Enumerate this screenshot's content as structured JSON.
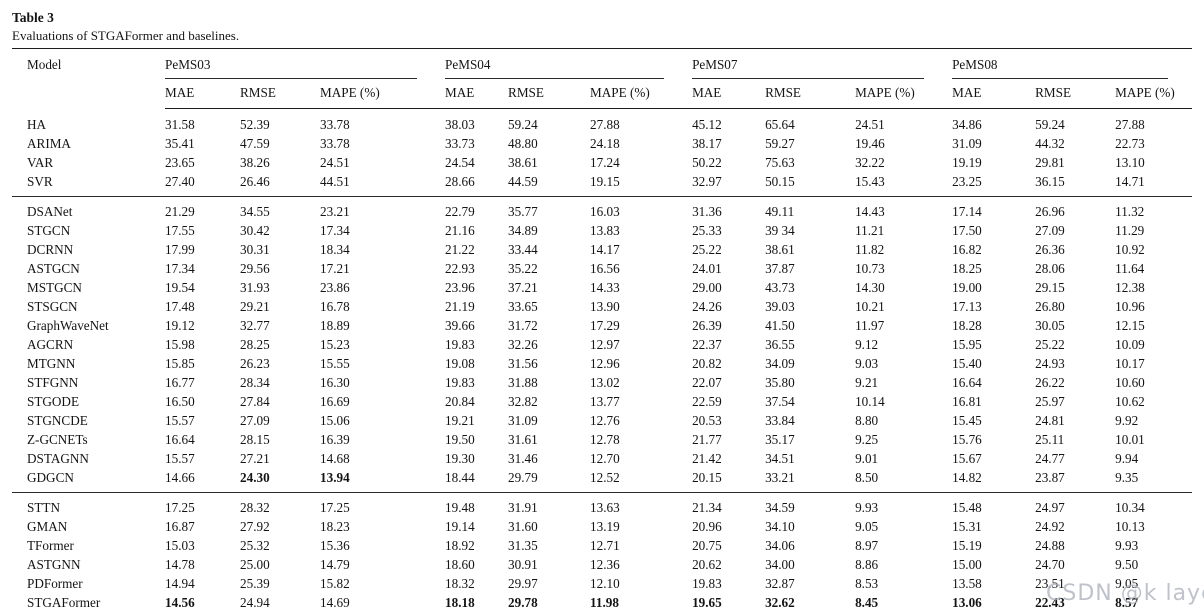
{
  "table": {
    "label": "Table 3",
    "caption": "Evaluations of STGAFormer and baselines.",
    "model_header": "Model",
    "groups": [
      "PeMS03",
      "PeMS04",
      "PeMS07",
      "PeMS08"
    ],
    "metrics": [
      "MAE",
      "RMSE",
      "MAPE (%)"
    ],
    "sections": [
      {
        "name": "classical-baselines",
        "rows": [
          {
            "model": "HA",
            "values": [
              "31.58",
              "52.39",
              "33.78",
              "38.03",
              "59.24",
              "27.88",
              "45.12",
              "65.64",
              "24.51",
              "34.86",
              "59.24",
              "27.88"
            ],
            "bold": []
          },
          {
            "model": "ARIMA",
            "values": [
              "35.41",
              "47.59",
              "33.78",
              "33.73",
              "48.80",
              "24.18",
              "38.17",
              "59.27",
              "19.46",
              "31.09",
              "44.32",
              "22.73"
            ],
            "bold": []
          },
          {
            "model": "VAR",
            "values": [
              "23.65",
              "38.26",
              "24.51",
              "24.54",
              "38.61",
              "17.24",
              "50.22",
              "75.63",
              "32.22",
              "19.19",
              "29.81",
              "13.10"
            ],
            "bold": []
          },
          {
            "model": "SVR",
            "values": [
              "27.40",
              "26.46",
              "44.51",
              "28.66",
              "44.59",
              "19.15",
              "32.97",
              "50.15",
              "15.43",
              "23.25",
              "36.15",
              "14.71"
            ],
            "bold": []
          }
        ]
      },
      {
        "name": "gnn-baselines",
        "rows": [
          {
            "model": "DSANet",
            "values": [
              "21.29",
              "34.55",
              "23.21",
              "22.79",
              "35.77",
              "16.03",
              "31.36",
              "49.11",
              "14.43",
              "17.14",
              "26.96",
              "11.32"
            ],
            "bold": []
          },
          {
            "model": "STGCN",
            "values": [
              "17.55",
              "30.42",
              "17.34",
              "21.16",
              "34.89",
              "13.83",
              "25.33",
              "39 34",
              "11.21",
              "17.50",
              "27.09",
              "11.29"
            ],
            "bold": []
          },
          {
            "model": "DCRNN",
            "values": [
              "17.99",
              "30.31",
              "18.34",
              "21.22",
              "33.44",
              "14.17",
              "25.22",
              "38.61",
              "11.82",
              "16.82",
              "26.36",
              "10.92"
            ],
            "bold": []
          },
          {
            "model": "ASTGCN",
            "values": [
              "17.34",
              "29.56",
              "17.21",
              "22.93",
              "35.22",
              "16.56",
              "24.01",
              "37.87",
              "10.73",
              "18.25",
              "28.06",
              "11.64"
            ],
            "bold": []
          },
          {
            "model": "MSTGCN",
            "values": [
              "19.54",
              "31.93",
              "23.86",
              "23.96",
              "37.21",
              "14.33",
              "29.00",
              "43.73",
              "14.30",
              "19.00",
              "29.15",
              "12.38"
            ],
            "bold": []
          },
          {
            "model": "STSGCN",
            "values": [
              "17.48",
              "29.21",
              "16.78",
              "21.19",
              "33.65",
              "13.90",
              "24.26",
              "39.03",
              "10.21",
              "17.13",
              "26.80",
              "10.96"
            ],
            "bold": []
          },
          {
            "model": "GraphWaveNet",
            "values": [
              "19.12",
              "32.77",
              "18.89",
              "39.66",
              "31.72",
              "17.29",
              "26.39",
              "41.50",
              "11.97",
              "18.28",
              "30.05",
              "12.15"
            ],
            "bold": []
          },
          {
            "model": "AGCRN",
            "values": [
              "15.98",
              "28.25",
              "15.23",
              "19.83",
              "32.26",
              "12.97",
              "22.37",
              "36.55",
              "9.12",
              "15.95",
              "25.22",
              "10.09"
            ],
            "bold": []
          },
          {
            "model": "MTGNN",
            "values": [
              "15.85",
              "26.23",
              "15.55",
              "19.08",
              "31.56",
              "12.96",
              "20.82",
              "34.09",
              "9.03",
              "15.40",
              "24.93",
              "10.17"
            ],
            "bold": []
          },
          {
            "model": "STFGNN",
            "values": [
              "16.77",
              "28.34",
              "16.30",
              "19.83",
              "31.88",
              "13.02",
              "22.07",
              "35.80",
              "9.21",
              "16.64",
              "26.22",
              "10.60"
            ],
            "bold": []
          },
          {
            "model": "STGODE",
            "values": [
              "16.50",
              "27.84",
              "16.69",
              "20.84",
              "32.82",
              "13.77",
              "22.59",
              "37.54",
              "10.14",
              "16.81",
              "25.97",
              "10.62"
            ],
            "bold": []
          },
          {
            "model": "STGNCDE",
            "values": [
              "15.57",
              "27.09",
              "15.06",
              "19.21",
              "31.09",
              "12.76",
              "20.53",
              "33.84",
              "8.80",
              "15.45",
              "24.81",
              "9.92"
            ],
            "bold": []
          },
          {
            "model": "Z-GCNETs",
            "values": [
              "16.64",
              "28.15",
              "16.39",
              "19.50",
              "31.61",
              "12.78",
              "21.77",
              "35.17",
              "9.25",
              "15.76",
              "25.11",
              "10.01"
            ],
            "bold": []
          },
          {
            "model": "DSTAGNN",
            "values": [
              "15.57",
              "27.21",
              "14.68",
              "19.30",
              "31.46",
              "12.70",
              "21.42",
              "34.51",
              "9.01",
              "15.67",
              "24.77",
              "9.94"
            ],
            "bold": []
          },
          {
            "model": "GDGCN",
            "values": [
              "14.66",
              "24.30",
              "13.94",
              "18.44",
              "29.79",
              "12.52",
              "20.15",
              "33.21",
              "8.50",
              "14.82",
              "23.87",
              "9.35"
            ],
            "bold": [
              1,
              2
            ]
          }
        ]
      },
      {
        "name": "transformer-baselines",
        "rows": [
          {
            "model": "STTN",
            "values": [
              "17.25",
              "28.32",
              "17.25",
              "19.48",
              "31.91",
              "13.63",
              "21.34",
              "34.59",
              "9.93",
              "15.48",
              "24.97",
              "10.34"
            ],
            "bold": []
          },
          {
            "model": "GMAN",
            "values": [
              "16.87",
              "27.92",
              "18.23",
              "19.14",
              "31.60",
              "13.19",
              "20.96",
              "34.10",
              "9.05",
              "15.31",
              "24.92",
              "10.13"
            ],
            "bold": []
          },
          {
            "model": "TFormer",
            "values": [
              "15.03",
              "25.32",
              "15.36",
              "18.92",
              "31.35",
              "12.71",
              "20.75",
              "34.06",
              "8.97",
              "15.19",
              "24.88",
              "9.93"
            ],
            "bold": []
          },
          {
            "model": "ASTGNN",
            "values": [
              "14.78",
              "25.00",
              "14.79",
              "18.60",
              "30.91",
              "12.36",
              "20.62",
              "34.00",
              "8.86",
              "15.00",
              "24.70",
              "9.50"
            ],
            "bold": []
          },
          {
            "model": "PDFormer",
            "values": [
              "14.94",
              "25.39",
              "15.82",
              "18.32",
              "29.97",
              "12.10",
              "19.83",
              "32.87",
              "8.53",
              "13.58",
              "23.51",
              "9.05"
            ],
            "bold": []
          },
          {
            "model": "STGAFormer",
            "values": [
              "14.56",
              "24.94",
              "14.69",
              "18.18",
              "29.78",
              "11.98",
              "19.65",
              "32.62",
              "8.45",
              "13.06",
              "22.43",
              "8.57"
            ],
            "bold": [
              0,
              3,
              4,
              5,
              6,
              7,
              8,
              9,
              10,
              11
            ]
          }
        ]
      }
    ]
  },
  "watermark": "CSDN @k layc"
}
